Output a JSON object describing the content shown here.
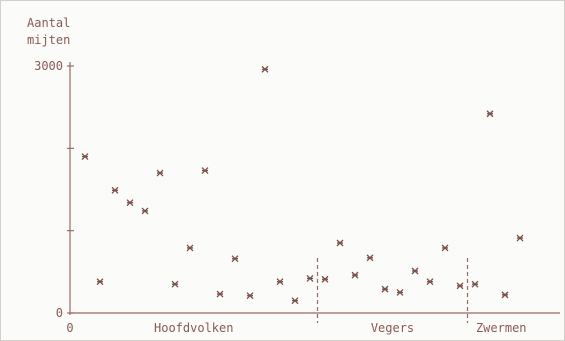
{
  "chart_data": {
    "type": "scatter",
    "title": "",
    "ylabel_lines": [
      "Aantal",
      "mijten"
    ],
    "xlabel": "",
    "ylim": [
      0,
      3000
    ],
    "yticks": [
      {
        "value": 0,
        "label": "0"
      },
      {
        "value": 1000,
        "label": ""
      },
      {
        "value": 2000,
        "label": ""
      },
      {
        "value": 3000,
        "label": "3000"
      }
    ],
    "x_origin_label": "0",
    "x_range": [
      0,
      31
    ],
    "grid": false,
    "marker": "*",
    "groups": [
      {
        "name": "Hoofdvolken",
        "range": [
          0,
          16.5
        ]
      },
      {
        "name": "Vegers",
        "range": [
          16.5,
          26.5
        ]
      },
      {
        "name": "Zwermen",
        "range": [
          26.5,
          31
        ]
      }
    ],
    "points": [
      {
        "x": 1,
        "y": 1900
      },
      {
        "x": 2,
        "y": 380
      },
      {
        "x": 3,
        "y": 1490
      },
      {
        "x": 4,
        "y": 1340
      },
      {
        "x": 5,
        "y": 1240
      },
      {
        "x": 6,
        "y": 1700
      },
      {
        "x": 7,
        "y": 350
      },
      {
        "x": 8,
        "y": 790
      },
      {
        "x": 9,
        "y": 1730
      },
      {
        "x": 10,
        "y": 230
      },
      {
        "x": 11,
        "y": 660
      },
      {
        "x": 12,
        "y": 210
      },
      {
        "x": 13,
        "y": 2960
      },
      {
        "x": 14,
        "y": 380
      },
      {
        "x": 15,
        "y": 150
      },
      {
        "x": 16,
        "y": 420
      },
      {
        "x": 17,
        "y": 410
      },
      {
        "x": 18,
        "y": 850
      },
      {
        "x": 19,
        "y": 460
      },
      {
        "x": 20,
        "y": 670
      },
      {
        "x": 21,
        "y": 290
      },
      {
        "x": 22,
        "y": 250
      },
      {
        "x": 23,
        "y": 510
      },
      {
        "x": 24,
        "y": 380
      },
      {
        "x": 25,
        "y": 790
      },
      {
        "x": 26,
        "y": 330
      },
      {
        "x": 27,
        "y": 350
      },
      {
        "x": 28,
        "y": 2420
      },
      {
        "x": 29,
        "y": 220
      },
      {
        "x": 30,
        "y": 910
      }
    ]
  },
  "colors": {
    "text": "#8a5a52",
    "axis": "#9a6a62",
    "marker": "#7a4e48",
    "background": "#fbfbf9"
  }
}
